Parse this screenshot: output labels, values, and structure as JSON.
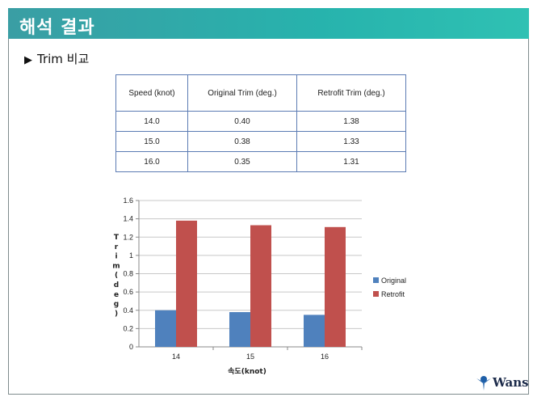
{
  "header": {
    "title": "해석 결과"
  },
  "subtitle": {
    "marker": "▶",
    "text": "Trim 비교"
  },
  "table": {
    "headers": [
      "Speed (knot)",
      "Original Trim (deg.)",
      "Retrofit Trim (deg.)"
    ],
    "rows": [
      [
        "14.0",
        "0.40",
        "1.38"
      ],
      [
        "15.0",
        "0.38",
        "1.33"
      ],
      [
        "16.0",
        "0.35",
        "1.31"
      ]
    ]
  },
  "chart_data": {
    "type": "bar",
    "categories": [
      "14",
      "15",
      "16"
    ],
    "series": [
      {
        "name": "Original",
        "values": [
          0.4,
          0.38,
          0.35
        ],
        "color": "#4f81bd"
      },
      {
        "name": "Retrofit",
        "values": [
          1.38,
          1.33,
          1.31
        ],
        "color": "#c0504d"
      }
    ],
    "xlabel": "속도(knot)",
    "ylabel": "Trim(deg)",
    "ylim": [
      0,
      1.6
    ],
    "yticks": [
      "0",
      "0.2",
      "0.4",
      "0.6",
      "0.8",
      "1",
      "1.2",
      "1.4",
      "1.6"
    ],
    "legend": "right",
    "grid": true
  },
  "logo": {
    "text": "Wans"
  },
  "colors": {
    "banner": "#2fb3ad",
    "table_border": "#5b7bb3",
    "logo_mark": "#1f5fa8"
  }
}
